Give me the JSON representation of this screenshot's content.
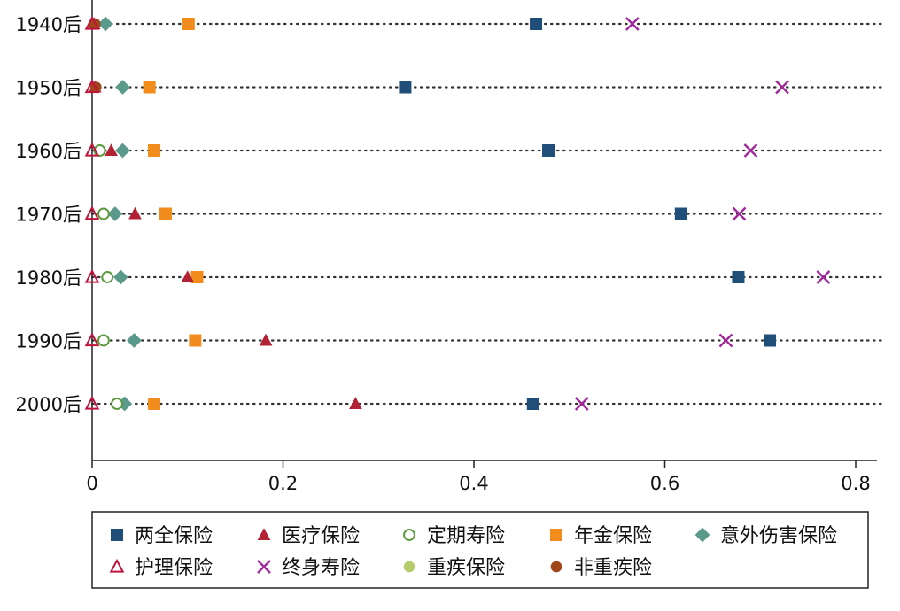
{
  "chart_data": {
    "type": "scatter",
    "categories": [
      "1940后",
      "1950后",
      "1960后",
      "1970后",
      "1980后",
      "1990后",
      "2000后"
    ],
    "xlim": [
      0,
      0.82
    ],
    "xticks": [
      "0",
      "0.2",
      "0.4",
      "0.6",
      "0.8"
    ],
    "xtick_values": [
      0,
      0.2,
      0.4,
      0.6,
      0.8
    ],
    "grid": "dotted horizontal guide per category",
    "legend_position": "bottom",
    "series": [
      {
        "name": "两全保险",
        "marker": "square",
        "color": "#1f4e79",
        "values": [
          0.465,
          0.328,
          0.478,
          0.617,
          0.677,
          0.71,
          0.462
        ]
      },
      {
        "name": "医疗保险",
        "marker": "triangle",
        "color": "#b22234",
        "values": [
          0.002,
          0.003,
          0.02,
          0.045,
          0.1,
          0.182,
          0.276
        ]
      },
      {
        "name": "定期寿险",
        "marker": "circle-open",
        "color": "#5a9a3c",
        "values": [
          null,
          null,
          0.008,
          0.012,
          0.016,
          0.012,
          0.026
        ]
      },
      {
        "name": "年金保险",
        "marker": "square",
        "color": "#f28c1c",
        "values": [
          0.101,
          0.06,
          0.065,
          0.077,
          0.11,
          0.108,
          0.065
        ]
      },
      {
        "name": "意外伤害保险",
        "marker": "diamond",
        "color": "#5b9a8b",
        "values": [
          0.014,
          0.032,
          0.032,
          0.024,
          0.03,
          0.044,
          0.034
        ]
      },
      {
        "name": "护理保险",
        "marker": "triangle-open",
        "color": "#c0143c",
        "values": [
          0.0,
          0.0,
          0.0,
          0.0,
          0.0,
          0.0,
          0.0
        ]
      },
      {
        "name": "终身寿险",
        "marker": "x",
        "color": "#a0289b",
        "values": [
          0.566,
          0.723,
          0.69,
          0.678,
          0.766,
          0.664,
          0.513
        ]
      },
      {
        "name": "重疾保险",
        "marker": "circle",
        "color": "#b5cc6a",
        "values": [
          null,
          null,
          null,
          null,
          null,
          null,
          null
        ]
      },
      {
        "name": "非重疾险",
        "marker": "circle",
        "color": "#a0461a",
        "values": [
          0.003,
          0.004,
          null,
          null,
          null,
          null,
          null
        ]
      }
    ]
  }
}
